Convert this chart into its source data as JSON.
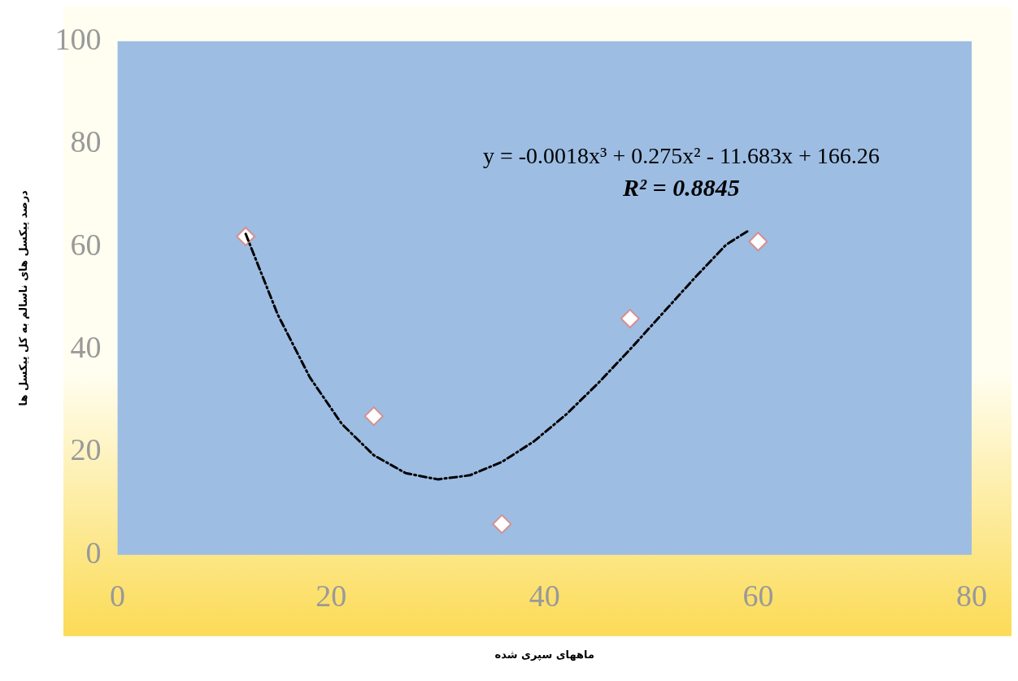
{
  "chart_data": {
    "type": "scatter",
    "xlabel": "ماههای سپری شده",
    "ylabel": "درصد پیکسل های ناسالم به کل پیکسل ها",
    "xlim": [
      0,
      80
    ],
    "xticks": [
      0,
      20,
      40,
      60,
      80
    ],
    "ylim": [
      0,
      100
    ],
    "yticks": [
      0,
      20,
      40,
      60,
      80,
      100
    ],
    "marker": "diamond",
    "series": [
      {
        "type": "scatter",
        "color": "#ffffff",
        "x": [
          12,
          24,
          36,
          48,
          60
        ],
        "values": [
          62,
          27,
          6,
          46,
          61
        ]
      },
      {
        "type": "line",
        "color": "#000000",
        "line_style": "dashed",
        "marker": "none",
        "x": [
          12,
          15,
          18,
          21,
          24,
          27,
          30,
          33,
          36,
          39,
          42,
          45,
          48,
          51,
          54,
          57,
          59
        ],
        "values": [
          62.5,
          46.8,
          34.6,
          25.5,
          19.4,
          15.9,
          14.7,
          15.5,
          18.1,
          22.1,
          27.3,
          33.4,
          40,
          46.9,
          53.8,
          60.4,
          63
        ]
      }
    ],
    "annotations": [
      "y = -0.0018x³ + 0.275x² - 11.683x + 166.26",
      "R² = 0.8845"
    ]
  }
}
